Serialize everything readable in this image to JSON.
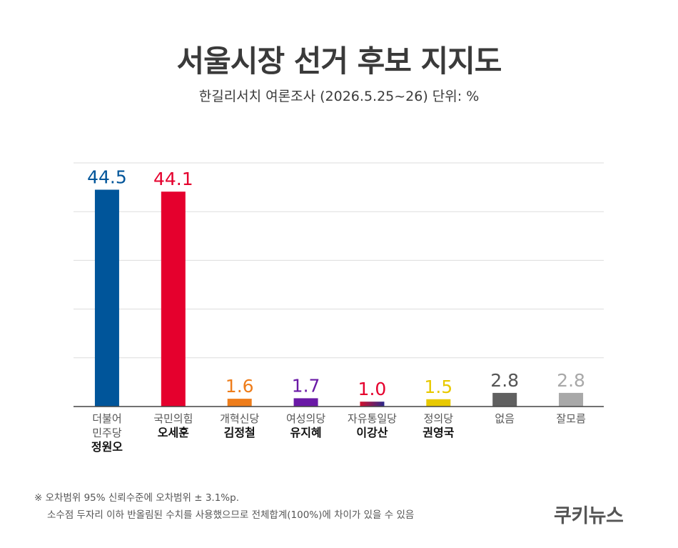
{
  "title": "서울시장 선거 후보 지지도",
  "subtitle": "한길리서치 여론조사 (2026.5.25~26) 단위: %",
  "chart_data": {
    "type": "bar",
    "categories": [
      {
        "party": "더불어\n민주당",
        "candidate": "정원오"
      },
      {
        "party": "국민의힘",
        "candidate": "오세훈"
      },
      {
        "party": "개혁신당",
        "candidate": "김정철"
      },
      {
        "party": "여성의당",
        "candidate": "유지혜"
      },
      {
        "party": "자유통일당",
        "candidate": "이강산"
      },
      {
        "party": "정의당",
        "candidate": "권영국"
      },
      {
        "party": "없음",
        "candidate": ""
      },
      {
        "party": "잘모름",
        "candidate": ""
      }
    ],
    "values": [
      44.5,
      44.1,
      1.6,
      1.7,
      1.0,
      1.5,
      2.8,
      2.8
    ],
    "value_labels": [
      "44.5",
      "44.1",
      "1.6",
      "1.7",
      "1.0",
      "1.5",
      "2.8",
      "2.8"
    ],
    "colors": [
      "#00559a",
      "#e5002d",
      "#ee7d1b",
      "#6a19a6",
      "#b8102e",
      "#e8c900",
      "#606060",
      "#a8a8a8"
    ],
    "label_colors": [
      "#00559a",
      "#e5002d",
      "#ee7d1b",
      "#6a19a6",
      "#e5002d",
      "#e8c900",
      "#555555",
      "#a8a8a8"
    ],
    "ylim": [
      0,
      50
    ],
    "grid": true,
    "legend": "none"
  },
  "footnote": {
    "line1": "※ 오차범위 95% 신뢰수준에 오차범위 ± 3.1%p.",
    "line2": "소수점 두자리 이하 반올림된 수치를 사용했으므로 전체합계(100%)에 차이가 있을 수 있음"
  },
  "logo": "쿠키뉴스"
}
